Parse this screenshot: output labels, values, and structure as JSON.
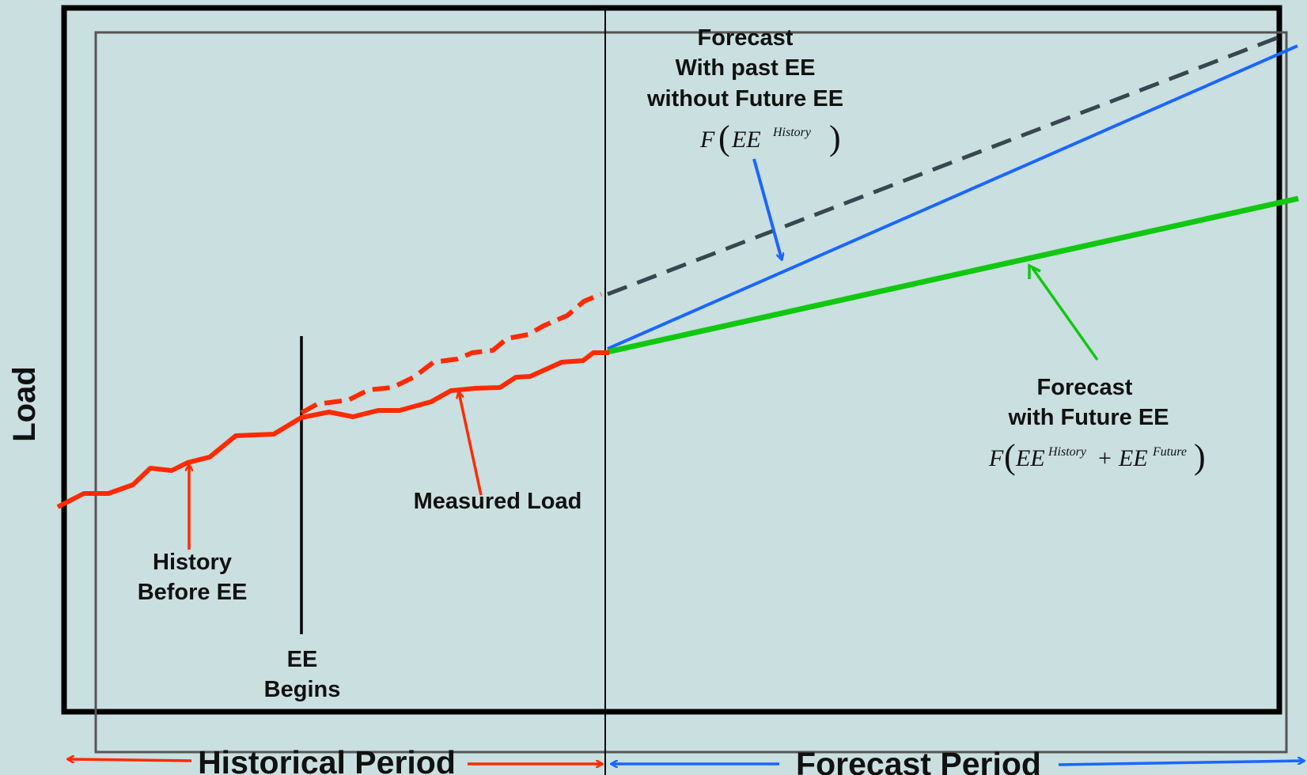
{
  "colors": {
    "background": "#cadfe0",
    "measured_load": "#ff2a00",
    "forecast_without_future_ee": "#37474f",
    "forecast_with_past_ee": "#1a66ff",
    "forecast_with_future_ee": "#11c811",
    "frame": "#000000",
    "inner_frame": "#555555"
  },
  "y_axis_label": "Load",
  "labels": {
    "forecast_without_future": [
      "Forecast",
      "With past EE",
      "without Future EE"
    ],
    "forecast_with_future": [
      "Forecast",
      "with Future EE"
    ],
    "measured_load": "Measured Load",
    "history_before_ee": [
      "History",
      "Before EE"
    ],
    "ee_begins": [
      "EE",
      "Begins"
    ],
    "historical_period": "Historical Period",
    "forecast_period": "Forecast Period"
  },
  "formulas": {
    "without_future": {
      "func": "F",
      "base": "EE",
      "sup": "History"
    },
    "with_future": {
      "func": "F",
      "base1": "EE",
      "sup1": "History",
      "plus": "+",
      "base2": "EE",
      "sup2": "Future"
    }
  }
}
